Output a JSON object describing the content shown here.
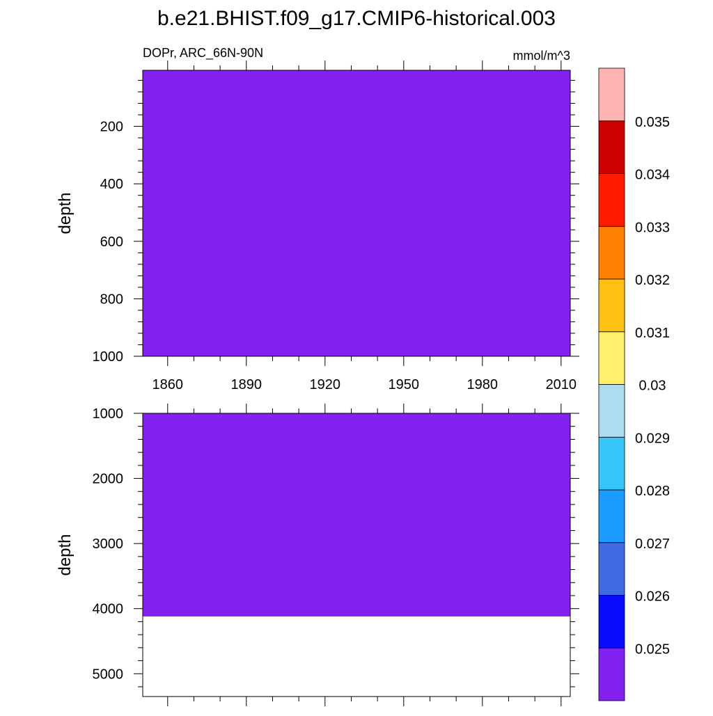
{
  "chart_data": {
    "type": "heatmap",
    "title": "b.e21.BHIST.f09_g17.CMIP6-historical.003",
    "left_subtitle": "DOPr, ARC_66N-90N",
    "right_subtitle": "mmol/m^3",
    "xlim": [
      1850.5,
      2013.5
    ],
    "x_ticks": [
      1860,
      1890,
      1920,
      1950,
      1980,
      2010
    ],
    "x_tick_labels": [
      "1860",
      "1890",
      "1920",
      "1950",
      "1980",
      "2010"
    ],
    "panels": [
      {
        "ylabel": "depth",
        "ylim": [
          5,
          1000
        ],
        "y_ticks": [
          200,
          400,
          600,
          800,
          1000
        ],
        "y_tick_labels": [
          "200",
          "400",
          "600",
          "800",
          "1000"
        ],
        "filled_depth_range": [
          5,
          1000
        ],
        "fill_value_class": "<0.025"
      },
      {
        "ylabel": "depth",
        "ylim": [
          1000,
          5350
        ],
        "y_ticks": [
          1000,
          2000,
          3000,
          4000,
          5000
        ],
        "y_tick_labels": [
          "1000",
          "2000",
          "3000",
          "4000",
          "5000"
        ],
        "filled_depth_range": [
          1000,
          4120
        ],
        "fill_value_class": "<0.025"
      }
    ],
    "colorbar": {
      "levels": [
        "0.025",
        "0.026",
        "0.027",
        "0.028",
        "0.029",
        "0.03",
        "0.031",
        "0.032",
        "0.033",
        "0.034",
        "0.035"
      ],
      "colors": [
        "#8221F0",
        "#0A0AFF",
        "#3F6AE3",
        "#1A9BFF",
        "#38C5F7",
        "#ADDCF0",
        "#FFF06E",
        "#FFC014",
        "#FF8000",
        "#FF1A00",
        "#CC0000",
        "#FFB3B3"
      ]
    }
  }
}
